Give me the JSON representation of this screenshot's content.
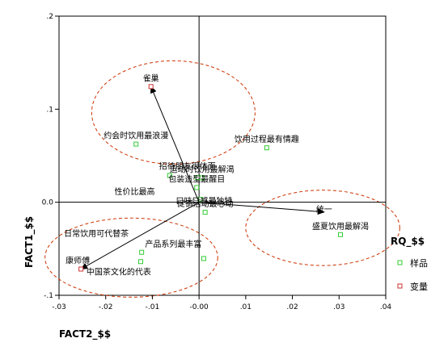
{
  "chart_data": {
    "type": "scatter",
    "title": "",
    "xlabel": "FACT2_$$",
    "ylabel": "FACT1_$$",
    "xlim": [
      -0.03,
      0.04
    ],
    "ylim": [
      -0.1,
      0.2
    ],
    "x_ticks": [
      -0.03,
      -0.02,
      -0.01,
      0.0,
      0.01,
      0.02,
      0.03,
      0.04
    ],
    "x_tick_labels": [
      "-.03",
      "-.02",
      "-.01",
      "-0.00",
      ".01",
      ".02",
      ".03",
      ".04"
    ],
    "y_ticks": [
      -0.1,
      0.0,
      0.1,
      0.2
    ],
    "y_tick_labels": [
      "-.1",
      "0.0",
      ".1",
      ".2"
    ],
    "grid": false,
    "reference_lines": {
      "x": 0.0,
      "y": 0.0
    },
    "legend": {
      "title": "RQ_$$",
      "placement": "right",
      "entries": [
        {
          "label": "样品",
          "color": "#33cc33"
        },
        {
          "label": "变量",
          "color": "#cc3333"
        }
      ]
    },
    "series": [
      {
        "name": "样品",
        "color": "#33cc33",
        "points": [
          {
            "x": -0.0135,
            "y": 0.0625,
            "label": "约会时饮用最浪漫"
          },
          {
            "x": 0.0145,
            "y": 0.0585,
            "label": "饮用过程最有情趣"
          },
          {
            "x": -0.0063,
            "y": 0.0288,
            "label": ""
          },
          {
            "x": -0.0003,
            "y": 0.0265,
            "label": ""
          },
          {
            "x": 0.0006,
            "y": 0.0262,
            "label": "运动时饮用最解渴"
          },
          {
            "x": -0.0005,
            "y": 0.0158,
            "label": "包装造型最醒目"
          },
          {
            "x": 0.0003,
            "y": 0.0032,
            "label": ""
          },
          {
            "x": 0.0013,
            "y": -0.0108,
            "label": "促销活动最心动"
          },
          {
            "x": 0.0303,
            "y": -0.0348,
            "label": "盛夏饮用最解渴"
          },
          {
            "x": -0.0123,
            "y": -0.0538,
            "label": ""
          },
          {
            "x": -0.0125,
            "y": -0.0638,
            "label": ""
          },
          {
            "x": 0.001,
            "y": -0.0605,
            "label": ""
          }
        ]
      },
      {
        "name": "变量",
        "color": "#cc3333",
        "points": [
          {
            "x": -0.0103,
            "y": 0.1243,
            "label": "雀巢"
          },
          {
            "x": -0.0253,
            "y": -0.0718,
            "label": "康师傅"
          }
        ]
      }
    ],
    "free_labels": [
      {
        "text": "招待朋友很体面",
        "x": -0.0025,
        "y": 0.0355
      },
      {
        "text": "性价比最高",
        "x": -0.0138,
        "y": 0.0085
      },
      {
        "text": "口味口感最独特",
        "x": 0.0011,
        "y": -0.0015
      },
      {
        "text": "统一",
        "x": 0.0268,
        "y": -0.0105
      },
      {
        "text": "日常饮用可代替茶",
        "x": -0.022,
        "y": -0.0365
      },
      {
        "text": "产品系列最丰富",
        "x": -0.0055,
        "y": -0.0478
      },
      {
        "text": "中国茶文化的代表",
        "x": -0.0172,
        "y": -0.0778
      }
    ],
    "arrows": [
      {
        "to_x": -0.0103,
        "to_y": 0.1243
      },
      {
        "to_x": 0.0268,
        "to_y": -0.0105
      },
      {
        "to_x": -0.0253,
        "to_y": -0.0718
      }
    ],
    "ellipses": [
      {
        "cx": -0.0055,
        "cy": 0.0965,
        "rx": 0.0175,
        "ry": 0.0555
      },
      {
        "cx": 0.0265,
        "cy": -0.0275,
        "rx": 0.0165,
        "ry": 0.0405
      },
      {
        "cx": -0.0145,
        "cy": -0.0595,
        "rx": 0.0185,
        "ry": 0.0425
      }
    ]
  }
}
